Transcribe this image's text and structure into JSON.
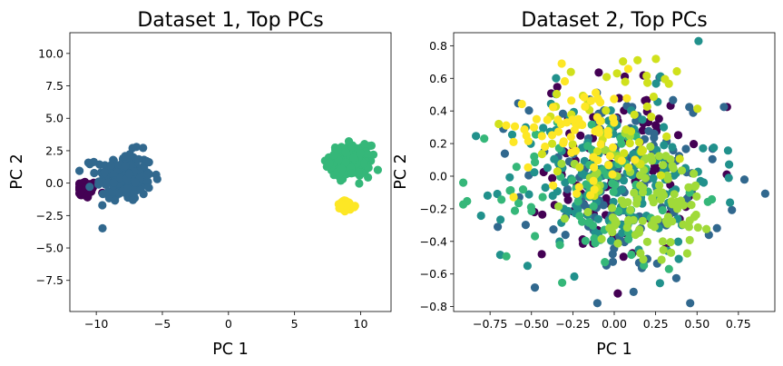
{
  "chart_data": [
    {
      "type": "scatter",
      "title": "Dataset 1, Top PCs",
      "xlabel": "PC 1",
      "ylabel": "PC 2",
      "xlim": [
        -12.0,
        12.3
      ],
      "ylim": [
        -9.9,
        11.6
      ],
      "xticks": [
        -10,
        -5,
        0,
        5,
        10
      ],
      "xtick_labels": [
        "−10",
        "−5",
        "0",
        "5",
        "10"
      ],
      "yticks": [
        -7.5,
        -5.0,
        -2.5,
        0.0,
        2.5,
        5.0,
        7.5,
        10.0
      ],
      "ytick_labels": [
        "−7.5",
        "−5.0",
        "−2.5",
        "0.0",
        "2.5",
        "5.0",
        "7.5",
        "10.0"
      ],
      "grid": false,
      "legend": "none",
      "clusters": [
        {
          "color": "#440154",
          "center": [
            -10.8,
            -0.5
          ],
          "spread": [
            0.45,
            0.35
          ],
          "count": 60
        },
        {
          "color": "#31688e",
          "center": [
            -7.9,
            0.5
          ],
          "spread": [
            1.05,
            0.95
          ],
          "count": 200
        },
        {
          "color": "#35b779",
          "center": [
            9.2,
            1.7
          ],
          "spread": [
            0.75,
            0.6
          ],
          "count": 200
        },
        {
          "color": "#fde725",
          "center": [
            8.9,
            -1.8
          ],
          "spread": [
            0.35,
            0.22
          ],
          "count": 50
        }
      ]
    },
    {
      "type": "scatter",
      "title": "Dataset 2, Top PCs",
      "xlabel": "PC 1",
      "ylabel": "PC 2",
      "xlim": [
        -0.97,
        0.97
      ],
      "ylim": [
        -0.83,
        0.88
      ],
      "xticks": [
        -0.75,
        -0.5,
        -0.25,
        0.0,
        0.25,
        0.5,
        0.75
      ],
      "xtick_labels": [
        "−0.75",
        "−0.50",
        "−0.25",
        "0.00",
        "0.25",
        "0.50",
        "0.75"
      ],
      "yticks": [
        -0.8,
        -0.6,
        -0.4,
        -0.2,
        0.0,
        0.2,
        0.4,
        0.6,
        0.8
      ],
      "ytick_labels": [
        "−0.8",
        "−0.6",
        "−0.4",
        "−0.2",
        "0.0",
        "0.2",
        "0.4",
        "0.6",
        "0.8"
      ],
      "grid": false,
      "legend": "none",
      "clusters": [
        {
          "color": "#440154",
          "center": [
            0.02,
            0.05
          ],
          "spread": [
            0.22,
            0.28
          ],
          "count": 110
        },
        {
          "color": "#31688e",
          "center": [
            0.05,
            -0.05
          ],
          "spread": [
            0.3,
            0.3
          ],
          "count": 130
        },
        {
          "color": "#21918c",
          "center": [
            -0.02,
            0.0
          ],
          "spread": [
            0.32,
            0.25
          ],
          "count": 150
        },
        {
          "color": "#35b779",
          "center": [
            -0.1,
            -0.1
          ],
          "spread": [
            0.3,
            0.25
          ],
          "count": 90
        },
        {
          "color": "#a0da39",
          "center": [
            0.2,
            -0.15
          ],
          "spread": [
            0.22,
            0.2
          ],
          "count": 110
        },
        {
          "color": "#d0e11c",
          "center": [
            0.05,
            0.35
          ],
          "spread": [
            0.28,
            0.22
          ],
          "count": 50
        },
        {
          "color": "#fde725",
          "center": [
            -0.2,
            0.3
          ],
          "spread": [
            0.2,
            0.18
          ],
          "count": 70
        }
      ]
    }
  ]
}
